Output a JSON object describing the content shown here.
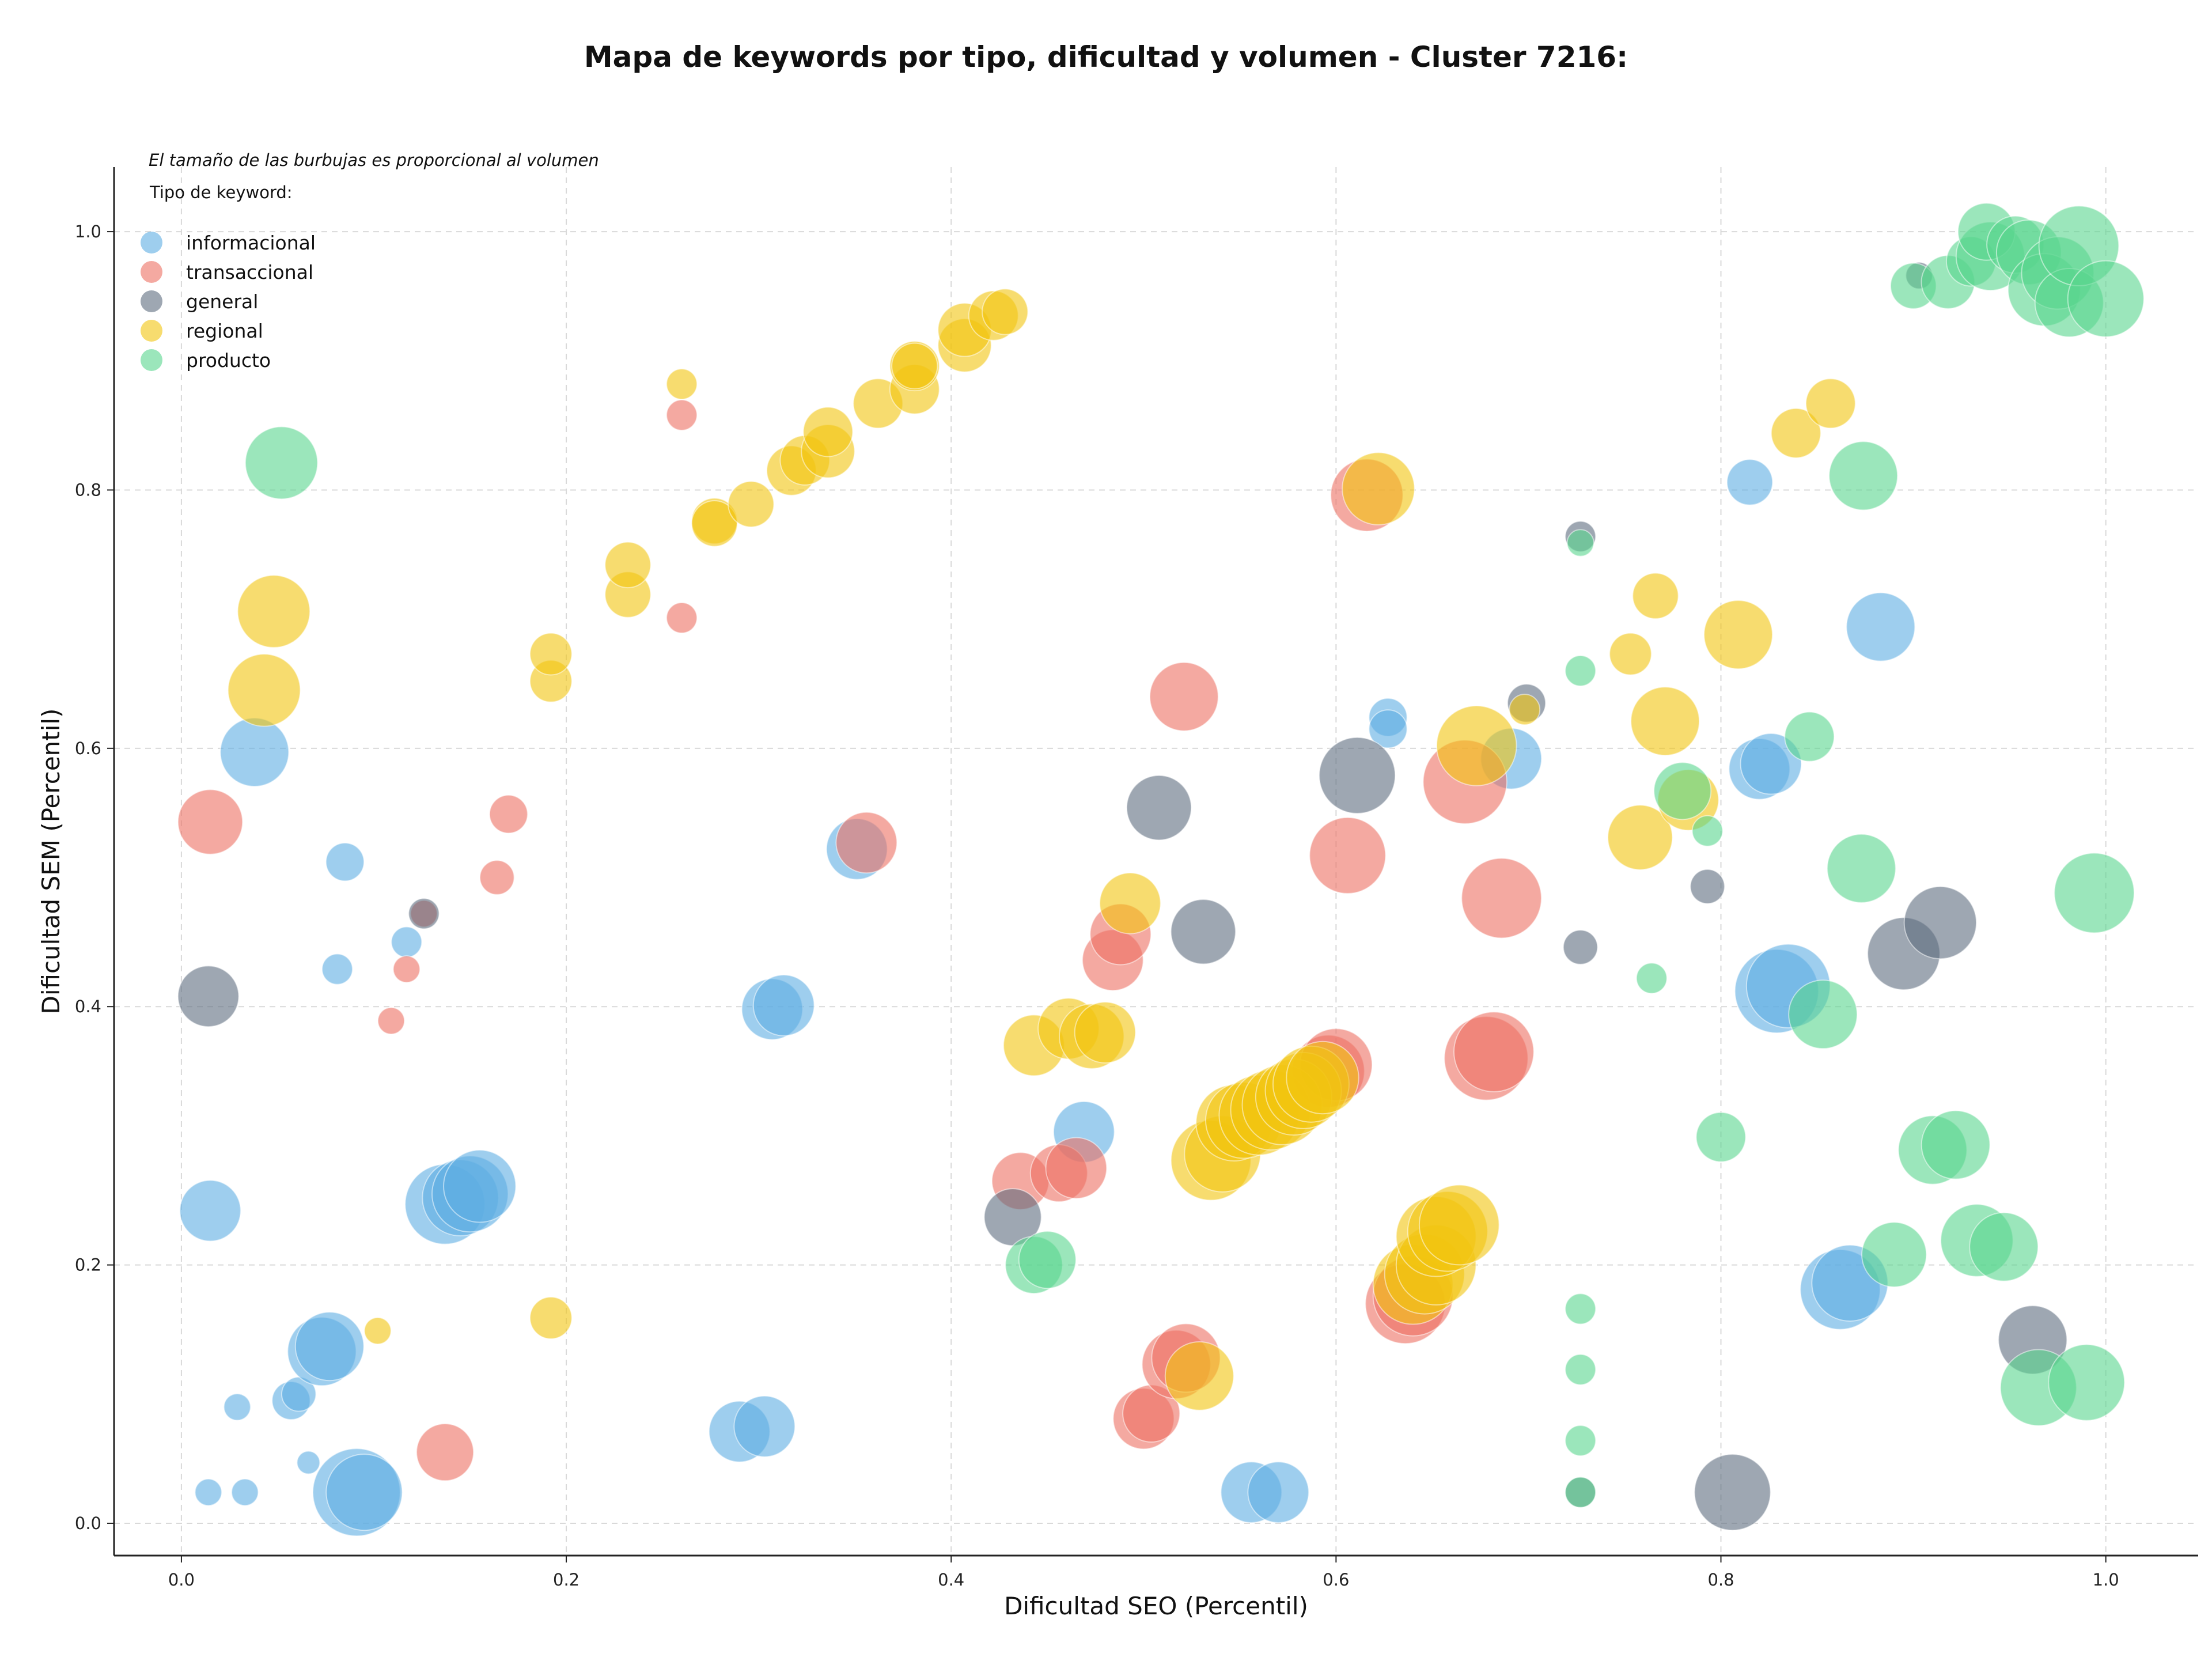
{
  "chart_data": {
    "type": "scatter",
    "title": "Mapa de keywords por tipo, dificultad y volumen - Cluster 7216:",
    "xlabel": "Dificultad SEO (Percentil)",
    "ylabel": "Dificultad SEM (Percentil)",
    "xlim": [
      -0.035,
      1.048
    ],
    "ylim": [
      -0.025,
      1.05
    ],
    "xticks": [
      "0.0",
      "0.2",
      "0.4",
      "0.6",
      "0.8",
      "1.0"
    ],
    "yticks": [
      "0.0",
      "0.2",
      "0.4",
      "0.6",
      "0.8",
      "1.0"
    ],
    "grid": true,
    "annotation": "El tamaño de las burbujas es proporcional al volumen",
    "legend_title": "Tipo de keyword:",
    "legend_position": "top-left",
    "series": [
      {
        "name": "informacional",
        "color": "#5dade2",
        "points": [
          [
            0.015,
            0.242,
            1.6
          ],
          [
            0.014,
            0.024,
            0.7
          ],
          [
            0.033,
            0.024,
            0.7
          ],
          [
            0.029,
            0.09,
            0.7
          ],
          [
            0.066,
            0.047,
            0.6
          ],
          [
            0.057,
            0.095,
            1.0
          ],
          [
            0.061,
            0.1,
            0.9
          ],
          [
            0.073,
            0.133,
            1.8
          ],
          [
            0.077,
            0.137,
            1.8
          ],
          [
            0.091,
            0.024,
            2.3
          ],
          [
            0.095,
            0.024,
            2.0
          ],
          [
            0.038,
            0.597,
            1.8
          ],
          [
            0.085,
            0.512,
            1.0
          ],
          [
            0.081,
            0.429,
            0.8
          ],
          [
            0.117,
            0.45,
            0.8
          ],
          [
            0.137,
            0.247,
            2.1
          ],
          [
            0.145,
            0.252,
            2.0
          ],
          [
            0.15,
            0.255,
            2.0
          ],
          [
            0.155,
            0.261,
            1.9
          ],
          [
            0.29,
            0.071,
            1.6
          ],
          [
            0.303,
            0.075,
            1.6
          ],
          [
            0.307,
            0.398,
            1.6
          ],
          [
            0.313,
            0.401,
            1.6
          ],
          [
            0.351,
            0.522,
            1.6
          ],
          [
            0.469,
            0.303,
            1.6
          ],
          [
            0.556,
            0.024,
            1.6
          ],
          [
            0.57,
            0.024,
            1.6
          ],
          [
            0.627,
            0.624,
            1.0
          ],
          [
            0.627,
            0.615,
            1.0
          ],
          [
            0.691,
            0.592,
            1.6
          ],
          [
            0.815,
            0.806,
            1.2
          ],
          [
            0.82,
            0.584,
            1.6
          ],
          [
            0.826,
            0.588,
            1.6
          ],
          [
            0.829,
            0.412,
            2.2
          ],
          [
            0.835,
            0.416,
            2.2
          ],
          [
            0.862,
            0.181,
            2.1
          ],
          [
            0.867,
            0.186,
            2.0
          ],
          [
            0.883,
            0.694,
            1.8
          ]
        ]
      },
      {
        "name": "transaccional",
        "color": "#ec7063",
        "points": [
          [
            0.015,
            0.543,
            1.7
          ],
          [
            0.109,
            0.389,
            0.7
          ],
          [
            0.117,
            0.429,
            0.7
          ],
          [
            0.126,
            0.472,
            0.7
          ],
          [
            0.137,
            0.055,
            1.5
          ],
          [
            0.164,
            0.5,
            0.9
          ],
          [
            0.17,
            0.549,
            1.0
          ],
          [
            0.26,
            0.701,
            0.8
          ],
          [
            0.26,
            0.858,
            0.8
          ],
          [
            0.356,
            0.527,
            1.6
          ],
          [
            0.436,
            0.265,
            1.5
          ],
          [
            0.456,
            0.271,
            1.5
          ],
          [
            0.465,
            0.275,
            1.6
          ],
          [
            0.484,
            0.436,
            1.6
          ],
          [
            0.488,
            0.456,
            1.6
          ],
          [
            0.5,
            0.081,
            1.6
          ],
          [
            0.504,
            0.085,
            1.5
          ],
          [
            0.517,
            0.123,
            1.8
          ],
          [
            0.522,
            0.128,
            1.8
          ],
          [
            0.521,
            0.64,
            1.8
          ],
          [
            0.596,
            0.35,
            1.9
          ],
          [
            0.6,
            0.355,
            1.9
          ],
          [
            0.606,
            0.517,
            2.0
          ],
          [
            0.616,
            0.796,
            1.9
          ],
          [
            0.636,
            0.17,
            2.1
          ],
          [
            0.64,
            0.176,
            2.1
          ],
          [
            0.667,
            0.574,
            2.2
          ],
          [
            0.678,
            0.36,
            2.2
          ],
          [
            0.682,
            0.365,
            2.1
          ],
          [
            0.686,
            0.484,
            2.1
          ]
        ]
      },
      {
        "name": "general",
        "color": "#5d6d7e",
        "points": [
          [
            0.014,
            0.408,
            1.6
          ],
          [
            0.126,
            0.472,
            0.8
          ],
          [
            0.432,
            0.237,
            1.5
          ],
          [
            0.508,
            0.554,
            1.7
          ],
          [
            0.531,
            0.458,
            1.7
          ],
          [
            0.611,
            0.579,
            2.0
          ],
          [
            0.699,
            0.635,
            1.0
          ],
          [
            0.727,
            0.764,
            0.8
          ],
          [
            0.727,
            0.446,
            0.9
          ],
          [
            0.727,
            0.024,
            0.8
          ],
          [
            0.793,
            0.493,
            0.9
          ],
          [
            0.806,
            0.024,
            2.0
          ],
          [
            0.895,
            0.441,
            1.9
          ],
          [
            0.914,
            0.465,
            1.9
          ],
          [
            0.903,
            0.966,
            0.7
          ],
          [
            0.962,
            0.142,
            1.8
          ]
        ]
      },
      {
        "name": "regional",
        "color": "#f1c40f",
        "points": [
          [
            0.048,
            0.706,
            1.9
          ],
          [
            0.043,
            0.645,
            1.9
          ],
          [
            0.102,
            0.149,
            0.7
          ],
          [
            0.192,
            0.159,
            1.1
          ],
          [
            0.192,
            0.652,
            1.1
          ],
          [
            0.192,
            0.673,
            1.1
          ],
          [
            0.232,
            0.719,
            1.2
          ],
          [
            0.232,
            0.742,
            1.2
          ],
          [
            0.26,
            0.882,
            0.8
          ],
          [
            0.277,
            0.776,
            1.2
          ],
          [
            0.277,
            0.774,
            1.2
          ],
          [
            0.296,
            0.789,
            1.2
          ],
          [
            0.317,
            0.815,
            1.3
          ],
          [
            0.324,
            0.823,
            1.3
          ],
          [
            0.336,
            0.83,
            1.4
          ],
          [
            0.336,
            0.845,
            1.3
          ],
          [
            0.362,
            0.867,
            1.3
          ],
          [
            0.381,
            0.878,
            1.3
          ],
          [
            0.381,
            0.896,
            1.3
          ],
          [
            0.381,
            0.896,
            1.2
          ],
          [
            0.407,
            0.912,
            1.4
          ],
          [
            0.407,
            0.924,
            1.4
          ],
          [
            0.422,
            0.935,
            1.3
          ],
          [
            0.428,
            0.938,
            1.2
          ],
          [
            0.443,
            0.37,
            1.6
          ],
          [
            0.461,
            0.383,
            1.6
          ],
          [
            0.473,
            0.377,
            1.7
          ],
          [
            0.48,
            0.38,
            1.6
          ],
          [
            0.493,
            0.48,
            1.6
          ],
          [
            0.529,
            0.114,
            1.8
          ],
          [
            0.535,
            0.281,
            2.1
          ],
          [
            0.541,
            0.286,
            2.0
          ],
          [
            0.547,
            0.31,
            2.0
          ],
          [
            0.552,
            0.312,
            2.0
          ],
          [
            0.56,
            0.316,
            2.1
          ],
          [
            0.566,
            0.32,
            2.1
          ],
          [
            0.572,
            0.324,
            2.1
          ],
          [
            0.578,
            0.33,
            2.0
          ],
          [
            0.583,
            0.335,
            2.0
          ],
          [
            0.587,
            0.34,
            2.0
          ],
          [
            0.593,
            0.345,
            1.9
          ],
          [
            0.622,
            0.801,
            1.9
          ],
          [
            0.64,
            0.185,
            2.1
          ],
          [
            0.646,
            0.193,
            2.1
          ],
          [
            0.652,
            0.2,
            2.1
          ],
          [
            0.652,
            0.222,
            2.1
          ],
          [
            0.658,
            0.226,
            2.1
          ],
          [
            0.664,
            0.231,
            2.1
          ],
          [
            0.673,
            0.602,
            2.1
          ],
          [
            0.698,
            0.63,
            0.8
          ],
          [
            0.753,
            0.673,
            1.1
          ],
          [
            0.758,
            0.531,
            1.7
          ],
          [
            0.766,
            0.718,
            1.2
          ],
          [
            0.771,
            0.621,
            1.8
          ],
          [
            0.783,
            0.56,
            1.6
          ],
          [
            0.809,
            0.688,
            1.8
          ],
          [
            0.839,
            0.844,
            1.3
          ],
          [
            0.857,
            0.867,
            1.3
          ]
        ]
      },
      {
        "name": "producto",
        "color": "#58d68d",
        "points": [
          [
            0.052,
            0.821,
            1.9
          ],
          [
            0.443,
            0.2,
            1.5
          ],
          [
            0.45,
            0.204,
            1.5
          ],
          [
            0.727,
            0.66,
            0.8
          ],
          [
            0.727,
            0.759,
            0.7
          ],
          [
            0.727,
            0.166,
            0.8
          ],
          [
            0.727,
            0.119,
            0.8
          ],
          [
            0.727,
            0.064,
            0.8
          ],
          [
            0.727,
            0.024,
            0.8
          ],
          [
            0.764,
            0.422,
            0.8
          ],
          [
            0.78,
            0.567,
            1.5
          ],
          [
            0.793,
            0.536,
            0.8
          ],
          [
            0.8,
            0.299,
            1.3
          ],
          [
            0.846,
            0.609,
            1.3
          ],
          [
            0.853,
            0.394,
            1.8
          ],
          [
            0.873,
            0.507,
            1.8
          ],
          [
            0.874,
            0.811,
            1.8
          ],
          [
            0.89,
            0.208,
            1.7
          ],
          [
            0.91,
            0.289,
            1.8
          ],
          [
            0.922,
            0.293,
            1.8
          ],
          [
            0.933,
            0.219,
            1.9
          ],
          [
            0.947,
            0.214,
            1.8
          ],
          [
            0.965,
            0.105,
            2.0
          ],
          [
            0.99,
            0.109,
            2.0
          ],
          [
            0.994,
            0.488,
            2.1
          ],
          [
            0.9,
            0.958,
            1.2
          ],
          [
            0.918,
            0.961,
            1.4
          ],
          [
            0.93,
            0.977,
            1.3
          ],
          [
            0.94,
            0.981,
            1.8
          ],
          [
            0.938,
            1.0,
            1.5
          ],
          [
            0.953,
            0.99,
            1.5
          ],
          [
            0.96,
            0.984,
            1.7
          ],
          [
            0.968,
            0.955,
            1.9
          ],
          [
            0.975,
            0.968,
            1.9
          ],
          [
            0.981,
            0.945,
            1.8
          ],
          [
            0.986,
            0.989,
            2.1
          ],
          [
            1.0,
            0.948,
            2.0
          ]
        ]
      }
    ]
  }
}
